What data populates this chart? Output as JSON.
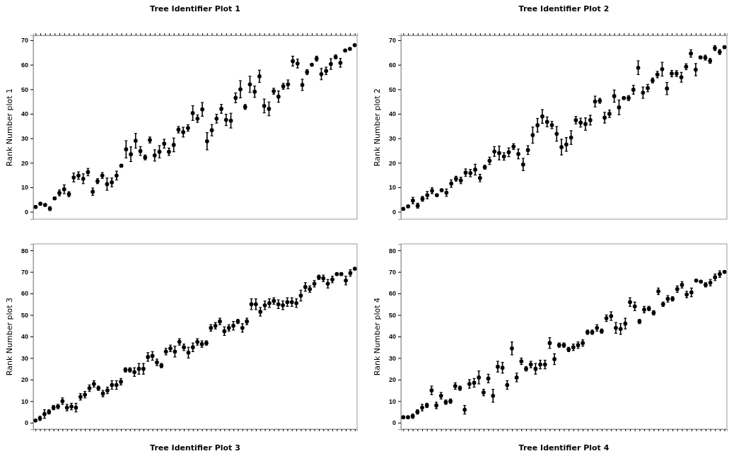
{
  "chart_data": [
    {
      "type": "scatter",
      "x2label": "Tree Identifier Plot 1",
      "ylabel": "Rank Number plot 1",
      "ylim": [
        -3,
        72
      ],
      "yticks": [
        0,
        10,
        20,
        30,
        40,
        50,
        60,
        70
      ],
      "grid": false,
      "marker": "circle",
      "color": "#000000",
      "categories": [
        null,
        null,
        null,
        null,
        null,
        null,
        null,
        null,
        null,
        null,
        null,
        null,
        null,
        null,
        null,
        null,
        null,
        null,
        null,
        null,
        null,
        null,
        null,
        null,
        null,
        null,
        null,
        null,
        null,
        null,
        null,
        null,
        null,
        null,
        null,
        null,
        null,
        null,
        null,
        null,
        null,
        null,
        null,
        null,
        null,
        null,
        null,
        null,
        null,
        null,
        null,
        null,
        null,
        null,
        null,
        null,
        null,
        null,
        null,
        null,
        null,
        null,
        null,
        null,
        null,
        null,
        null,
        null
      ],
      "values": [
        2,
        3.3,
        2.8,
        1.3,
        5.5,
        7.7,
        9.2,
        7.2,
        14,
        14.8,
        13.5,
        16.2,
        8.2,
        12.5,
        14.8,
        11.3,
        12,
        14.8,
        18.8,
        25.5,
        23.5,
        29,
        24.8,
        22.2,
        29.3,
        23,
        24.5,
        27.8,
        24.5,
        27.3,
        33.5,
        32.5,
        34.2,
        40.3,
        38,
        41.8,
        28.8,
        33.3,
        38,
        42,
        37.5,
        37.2,
        46.5,
        50,
        42.8,
        52,
        49,
        55.3,
        43.2,
        42,
        49.2,
        47,
        51.2,
        52,
        61.5,
        60.5,
        51.8,
        57,
        60,
        62.5,
        56.2,
        57.5,
        60.3,
        63.2,
        60.8,
        65.8,
        66.5,
        68
      ],
      "errors": [
        null,
        null,
        null,
        0.8,
        0.5,
        1.2,
        1.8,
        1,
        1.8,
        1.5,
        2,
        1.5,
        1.5,
        1,
        1.2,
        2.5,
        1.8,
        1.8,
        0.5,
        3.5,
        3,
        3,
        1.8,
        1,
        1.2,
        2.3,
        2.5,
        1.8,
        1.5,
        2.8,
        1.3,
        2,
        1.3,
        3,
        1.5,
        2.8,
        3.5,
        2.3,
        1.8,
        1.8,
        2.3,
        3,
        2,
        3.5,
        1,
        3.3,
        2.3,
        2.5,
        2.8,
        2.8,
        1.2,
        2.3,
        1.2,
        1.8,
        2,
        1.8,
        2.3,
        1,
        null,
        1,
        2.3,
        1.5,
        2.2,
        0.8,
        1.8,
        null,
        null,
        null
      ]
    },
    {
      "type": "scatter",
      "x2label": "Tree Identifier Plot 2",
      "ylabel": "Rank Number plot 2",
      "ylim": [
        -3,
        72
      ],
      "yticks": [
        0,
        10,
        20,
        30,
        40,
        50,
        60,
        70
      ],
      "grid": false,
      "marker": "circle",
      "color": "#000000",
      "categories": [
        null,
        null,
        null,
        null,
        null,
        null,
        null,
        null,
        null,
        null,
        null,
        null,
        null,
        null,
        null,
        null,
        null,
        null,
        null,
        null,
        null,
        null,
        null,
        null,
        null,
        null,
        null,
        null,
        null,
        null,
        null,
        null,
        null,
        null,
        null,
        null,
        null,
        null,
        null,
        null,
        null,
        null,
        null,
        null,
        null,
        null,
        null,
        null,
        null,
        null,
        null,
        null,
        null,
        null,
        null,
        null,
        null,
        null,
        null,
        null,
        null,
        null,
        null,
        null,
        null,
        null,
        null,
        null
      ],
      "values": [
        1.2,
        2.2,
        4.6,
        2.5,
        5.3,
        6.8,
        8.6,
        6.8,
        8.8,
        7.8,
        11.5,
        13.5,
        12.8,
        16,
        15.8,
        17.2,
        13.8,
        18.2,
        20.8,
        24.6,
        24,
        22.6,
        24.3,
        26.6,
        23.6,
        19.3,
        25.2,
        31.3,
        35.3,
        38.9,
        36.7,
        35.4,
        31.8,
        26.4,
        27.5,
        30.3,
        37.4,
        36.4,
        35.8,
        37.4,
        45,
        45.3,
        38.4,
        40,
        47.2,
        42.6,
        46.4,
        46.4,
        49.8,
        58.8,
        48.6,
        50.5,
        53.6,
        56,
        58.2,
        50.3,
        56.4,
        56.4,
        54.9,
        59.2,
        64.6,
        58,
        63,
        62.9,
        61.6,
        66.8,
        65.2,
        67.2
      ],
      "errors": [
        null,
        null,
        1.3,
        1,
        1,
        1.5,
        1.2,
        null,
        0.5,
        1.5,
        1.5,
        1,
        1.3,
        1.5,
        1.5,
        2.2,
        1.5,
        0.8,
        1.5,
        2,
        2.8,
        1.5,
        1.8,
        1.2,
        2,
        2.5,
        1.8,
        3.3,
        2.8,
        2.8,
        2,
        1.5,
        3,
        3.2,
        2.8,
        2.8,
        1.5,
        1.8,
        2.5,
        2,
        2.2,
        1,
        2.2,
        1.5,
        2.5,
        3,
        null,
        1,
        1.8,
        2.8,
        2.3,
        1.5,
        1,
        1.3,
        2.8,
        2.5,
        1.3,
        1.2,
        2,
        1.2,
        1.5,
        2.5,
        null,
        1,
        1,
        1,
        1,
        null
      ]
    },
    {
      "type": "scatter",
      "xlabel": "Tree Identifier Plot 3",
      "ylabel": "Rank Number plot 3",
      "ylim": [
        -3,
        83
      ],
      "yticks": [
        0,
        10,
        20,
        30,
        40,
        50,
        60,
        70,
        80
      ],
      "grid": false,
      "marker": "circle",
      "color": "#000000",
      "categories": [
        null,
        null,
        null,
        null,
        null,
        null,
        null,
        null,
        null,
        null,
        null,
        null,
        null,
        null,
        null,
        null,
        null,
        null,
        null,
        null,
        null,
        null,
        null,
        null,
        null,
        null,
        null,
        null,
        null,
        null,
        null,
        null,
        null,
        null,
        null,
        null,
        null,
        null,
        null,
        null,
        null,
        null,
        null,
        null,
        null,
        null,
        null,
        null,
        null,
        null,
        null,
        null,
        null,
        null,
        null,
        null,
        null,
        null,
        null,
        null,
        null,
        null,
        null,
        null,
        null,
        null,
        null,
        null,
        null,
        null,
        null,
        null
      ],
      "values": [
        1,
        2,
        4,
        5,
        7,
        7.5,
        10,
        7,
        7.5,
        7,
        12,
        13,
        16,
        18,
        16,
        13.5,
        15,
        17.5,
        17.5,
        19,
        24.5,
        24.5,
        23.5,
        25,
        25,
        30.5,
        31,
        28,
        26.5,
        33,
        34.5,
        33,
        37.5,
        35,
        32.5,
        35,
        37.5,
        36.5,
        37,
        44,
        45,
        47,
        42.5,
        44,
        45,
        47,
        44,
        47,
        55,
        55,
        51.5,
        54.5,
        55.5,
        56.5,
        55,
        54.5,
        56,
        56,
        55.5,
        59,
        63,
        62,
        64.5,
        67.5,
        67,
        64.5,
        66.5,
        69,
        69,
        66,
        69.5,
        71.5
      ],
      "errors": [
        null,
        1,
        2,
        1,
        1,
        1,
        1.5,
        1.5,
        1.5,
        2,
        1.5,
        1.5,
        1.5,
        1.5,
        1,
        1.5,
        1.5,
        2,
        2,
        1.5,
        1,
        1,
        2,
        2.5,
        2.5,
        2,
        2,
        1.5,
        1,
        1.5,
        1.5,
        2.5,
        1.5,
        1.5,
        2.5,
        2,
        1.5,
        1.5,
        1,
        1.5,
        1.5,
        1.5,
        2,
        1.5,
        2,
        1,
        2,
        1.5,
        2.5,
        2.5,
        2,
        2,
        2,
        1.5,
        2,
        2,
        2,
        2,
        2,
        2.5,
        2,
        1.5,
        1.5,
        1,
        1.5,
        2,
        1.5,
        null,
        null,
        2,
        1.5,
        null
      ]
    },
    {
      "type": "scatter",
      "xlabel": "Tree Identifier Plot 4",
      "ylabel": "Rank Number plot 4",
      "ylim": [
        -3,
        83
      ],
      "yticks": [
        0,
        10,
        20,
        30,
        40,
        50,
        60,
        70,
        80
      ],
      "grid": false,
      "marker": "circle",
      "color": "#000000",
      "categories": [
        null,
        null,
        null,
        null,
        null,
        null,
        null,
        null,
        null,
        null,
        null,
        null,
        null,
        null,
        null,
        null,
        null,
        null,
        null,
        null,
        null,
        null,
        null,
        null,
        null,
        null,
        null,
        null,
        null,
        null,
        null,
        null,
        null,
        null,
        null,
        null,
        null,
        null,
        null,
        null,
        null,
        null,
        null,
        null,
        null,
        null,
        null,
        null,
        null,
        null,
        null,
        null,
        null,
        null,
        null,
        null,
        null,
        null,
        null,
        null,
        null,
        null,
        null,
        null,
        null,
        null,
        null,
        null,
        null
      ],
      "values": [
        2.5,
        2.5,
        3,
        5,
        7,
        8,
        15,
        8,
        12.5,
        9.5,
        10,
        17,
        16,
        6,
        18,
        18.5,
        21,
        14,
        20.5,
        12.5,
        26,
        25.5,
        17.5,
        34.5,
        21,
        28.5,
        25,
        27,
        25,
        27,
        27,
        37,
        29.5,
        36,
        36,
        34,
        35,
        36,
        37,
        42,
        42,
        44,
        42.5,
        48.5,
        49.5,
        44,
        43.5,
        46,
        56,
        54,
        47,
        52.5,
        53,
        51,
        61,
        55,
        57.5,
        57.5,
        62,
        64,
        59.5,
        60.5,
        66,
        65.5,
        64,
        65,
        67.5,
        69,
        70
      ],
      "errors": [
        null,
        null,
        1,
        1,
        1.5,
        1,
        2,
        1.5,
        1.5,
        1,
        1,
        1.5,
        1,
        2,
        2,
        2,
        3,
        1.5,
        2,
        3,
        2.5,
        2.5,
        2,
        3,
        2,
        1.5,
        1,
        1.5,
        2.5,
        2,
        2,
        2.5,
        2.5,
        1,
        1,
        1,
        1.5,
        1.5,
        1.5,
        1,
        1,
        1.5,
        1,
        1.5,
        2,
        2.5,
        2.5,
        2.5,
        2,
        2,
        1,
        1.5,
        1,
        1,
        1.5,
        1,
        1.5,
        1,
        1.5,
        1.5,
        1.5,
        2,
        null,
        null,
        1,
        1.5,
        1.5,
        1.5,
        null
      ]
    }
  ]
}
